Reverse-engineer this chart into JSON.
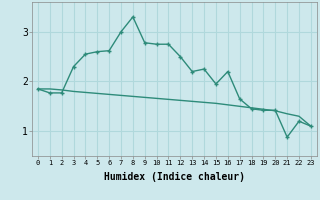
{
  "xlabel": "Humidex (Indice chaleur)",
  "x_values": [
    0,
    1,
    2,
    3,
    4,
    5,
    6,
    7,
    8,
    9,
    10,
    11,
    12,
    13,
    14,
    15,
    16,
    17,
    18,
    19,
    20,
    21,
    22,
    23
  ],
  "line1": [
    1.85,
    1.77,
    1.77,
    2.3,
    2.55,
    2.6,
    2.62,
    3.0,
    3.3,
    2.78,
    2.75,
    2.75,
    2.5,
    2.2,
    2.25,
    1.95,
    2.2,
    1.65,
    1.45,
    1.42,
    1.42,
    0.88,
    1.2,
    1.1
  ],
  "line2": [
    1.85,
    1.85,
    1.83,
    1.8,
    1.78,
    1.76,
    1.74,
    1.72,
    1.7,
    1.68,
    1.66,
    1.64,
    1.62,
    1.6,
    1.58,
    1.56,
    1.53,
    1.5,
    1.47,
    1.44,
    1.41,
    1.35,
    1.3,
    1.1
  ],
  "line_color": "#2e8b7a",
  "bg_color": "#cde8ec",
  "grid_color": "#b0d8dc",
  "yticks": [
    1,
    2,
    3
  ],
  "ylim": [
    0.5,
    3.6
  ],
  "xlim": [
    -0.5,
    23.5
  ]
}
